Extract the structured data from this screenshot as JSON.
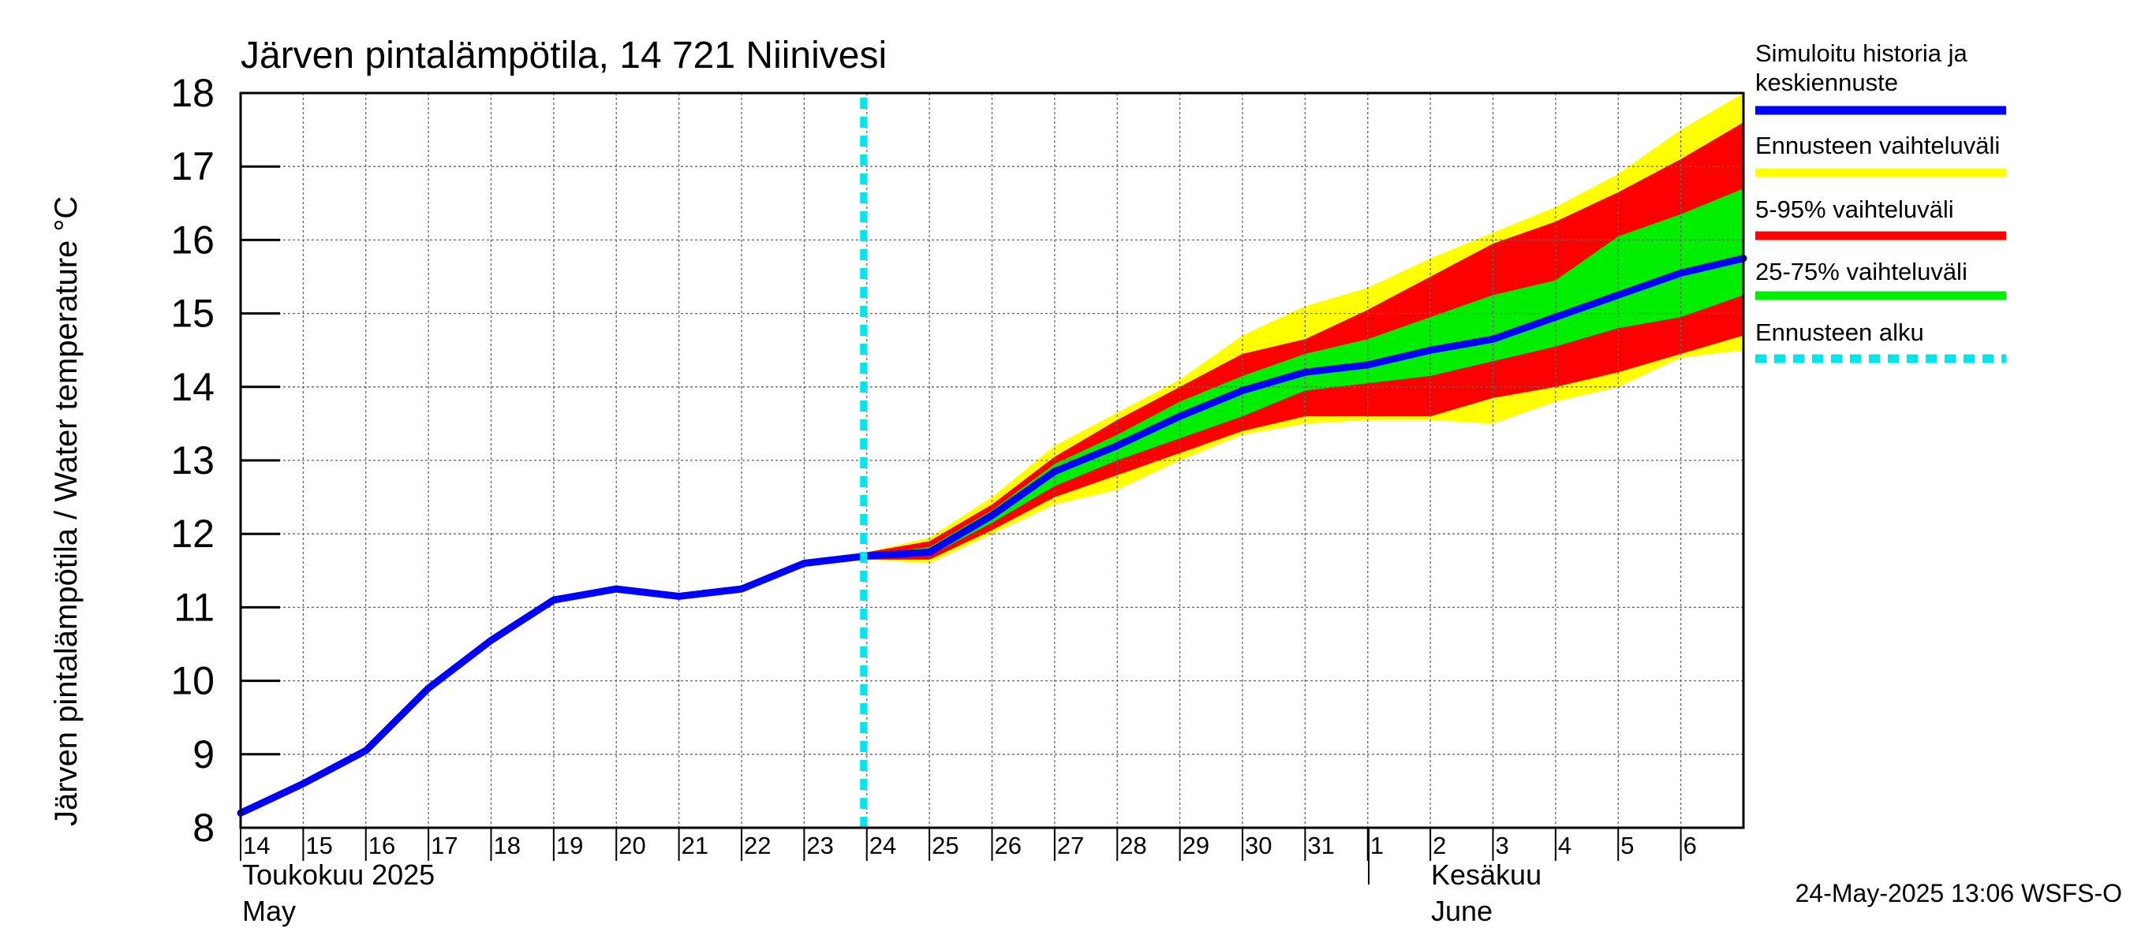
{
  "chart_data": {
    "type": "area",
    "title": "Järven pintalämpötila, 14 721 Niinivesi",
    "ylabel": "Järven pintalämpötila / Water temperature °C",
    "ylim": [
      8,
      18
    ],
    "yticks": [
      "8",
      "9",
      "10",
      "11",
      "12",
      "13",
      "14",
      "15",
      "16",
      "17",
      "18"
    ],
    "x_day_range": [
      0,
      24
    ],
    "x_tick_labels": [
      "14",
      "15",
      "16",
      "17",
      "18",
      "19",
      "20",
      "21",
      "22",
      "23",
      "24",
      "25",
      "26",
      "27",
      "28",
      "29",
      "30",
      "31",
      "1",
      "2",
      "3",
      "4",
      "5",
      "6"
    ],
    "month_labels": {
      "may_fi": "Toukokuu  2025",
      "may_en": "May",
      "june_fi": "Kesäkuu",
      "june_en": "June"
    },
    "grid": true,
    "forecast_start_day": 10,
    "series": [
      {
        "name": "Simuloitu historia ja keskiennuste",
        "color": "#0000ff",
        "days": [
          0,
          1,
          2,
          3,
          4,
          5,
          6,
          7,
          8,
          9,
          10,
          11,
          12,
          13,
          14,
          15,
          16,
          17,
          18,
          19,
          20,
          21,
          22,
          23,
          24
        ],
        "values": [
          8.2,
          8.6,
          9.05,
          9.9,
          10.55,
          11.1,
          11.25,
          11.15,
          11.25,
          11.6,
          11.7,
          11.75,
          12.25,
          12.85,
          13.2,
          13.6,
          13.95,
          14.2,
          14.3,
          14.5,
          14.65,
          14.95,
          15.25,
          15.55,
          15.75
        ]
      }
    ],
    "bands": [
      {
        "name": "Ennusteen vaihteluväli",
        "color": "#ffff00",
        "days": [
          10,
          11,
          12,
          13,
          14,
          15,
          16,
          17,
          18,
          19,
          20,
          21,
          22,
          23,
          24
        ],
        "upper": [
          11.75,
          11.95,
          12.5,
          13.2,
          13.65,
          14.1,
          14.7,
          15.1,
          15.35,
          15.75,
          16.1,
          16.45,
          16.9,
          17.5,
          18.0
        ],
        "lower": [
          11.65,
          11.6,
          12.0,
          12.4,
          12.6,
          13.0,
          13.35,
          13.5,
          13.55,
          13.55,
          13.5,
          13.8,
          14.0,
          14.4,
          14.5
        ]
      },
      {
        "name": "5-95% vaihteluväli",
        "color": "#ff0000",
        "days": [
          10,
          11,
          12,
          13,
          14,
          15,
          16,
          17,
          18,
          19,
          20,
          21,
          22,
          23,
          24
        ],
        "upper": [
          11.75,
          11.9,
          12.4,
          13.05,
          13.55,
          14.0,
          14.45,
          14.65,
          15.05,
          15.5,
          15.95,
          16.25,
          16.65,
          17.1,
          17.6
        ],
        "lower": [
          11.65,
          11.65,
          12.05,
          12.5,
          12.8,
          13.1,
          13.4,
          13.6,
          13.6,
          13.6,
          13.85,
          14.0,
          14.2,
          14.45,
          14.7
        ]
      },
      {
        "name": "25-75% vaihteluväli",
        "color": "#00ee00",
        "days": [
          10,
          11,
          12,
          13,
          14,
          15,
          16,
          17,
          18,
          19,
          20,
          21,
          22,
          23,
          24
        ],
        "upper": [
          11.72,
          11.82,
          12.32,
          12.95,
          13.35,
          13.8,
          14.15,
          14.45,
          14.65,
          14.95,
          15.25,
          15.45,
          16.05,
          16.35,
          16.7
        ],
        "lower": [
          11.68,
          11.7,
          12.15,
          12.65,
          13.0,
          13.3,
          13.6,
          13.95,
          14.05,
          14.15,
          14.35,
          14.55,
          14.8,
          14.95,
          15.25
        ]
      }
    ],
    "legend": [
      {
        "label_line1": "Simuloitu historia ja",
        "label_line2": "keskiennuste",
        "color": "#0000ff",
        "style": "solid"
      },
      {
        "label_line1": "Ennusteen vaihteluväli",
        "label_line2": "",
        "color": "#ffff00",
        "style": "solid"
      },
      {
        "label_line1": "5-95% vaihteluväli",
        "label_line2": "",
        "color": "#ff0000",
        "style": "solid"
      },
      {
        "label_line1": "25-75% vaihteluväli",
        "label_line2": "",
        "color": "#00ee00",
        "style": "solid"
      },
      {
        "label_line1": "Ennusteen alku",
        "label_line2": "",
        "color": "#00e5ee",
        "style": "dashed"
      }
    ]
  },
  "footer": "24-May-2025 13:06 WSFS-O"
}
